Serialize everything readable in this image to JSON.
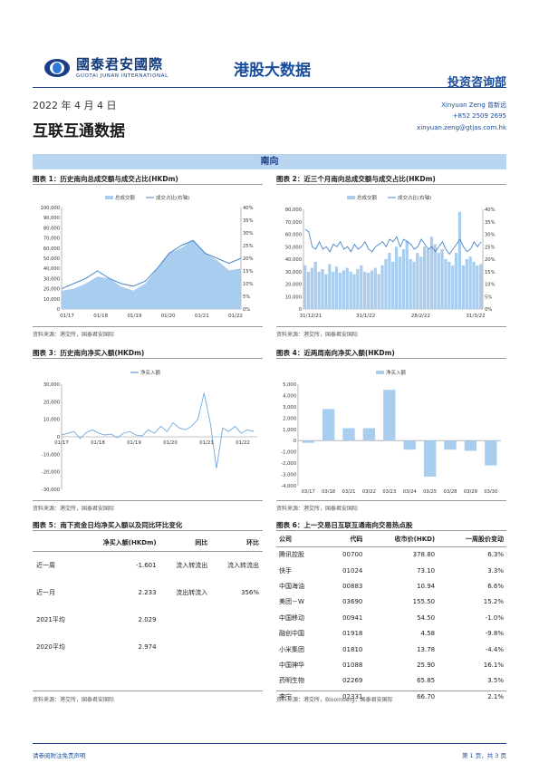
{
  "header": {
    "brand_cn": "國泰君安國際",
    "brand_en": "GUOTAI JUNAN INTERNATIONAL",
    "report_title": "港股大数据",
    "department": "投资咨询部"
  },
  "doc": {
    "date": "2022 年 4 月 4 日",
    "title": "互联互通数据"
  },
  "contact": {
    "name": "Xinyuan Zeng 曾新远",
    "phone": "+852 2509 2695",
    "email": "xinyuan.zeng@gtjas.com.hk"
  },
  "section": {
    "label": "南向"
  },
  "colors": {
    "bar": "#a9cdef",
    "line": "#4a86c8",
    "accent": "#1a3e86",
    "band": "#b8d4ee"
  },
  "fig1": {
    "title": "图表 1：历史南向总成交额与成交占比(HKDm)",
    "source": "资料来源：港交所，国泰君安国际",
    "chart_data": {
      "type": "area",
      "series": [
        {
          "name": "总成交额",
          "values": [
            18000,
            20000,
            25000,
            32000,
            30000,
            22000,
            18000,
            25000,
            40000,
            55000,
            60000,
            68000,
            55000,
            48000,
            38000,
            40000
          ]
        },
        {
          "name": "成交占比(右轴)",
          "values": [
            8,
            10,
            12,
            15,
            12,
            10,
            9,
            11,
            16,
            22,
            25,
            27,
            22,
            20,
            18,
            20
          ]
        }
      ],
      "x_ticks": [
        "01/17",
        "01/18",
        "01/19",
        "01/20",
        "01/21",
        "01/22"
      ],
      "y_ticks": [
        "100,000",
        "90,000",
        "80,000",
        "70,000",
        "60,000",
        "50,000",
        "40,000",
        "30,000",
        "20,000",
        "10,000",
        "0"
      ],
      "y2_ticks": [
        "40%",
        "35%",
        "30%",
        "25%",
        "20%",
        "15%",
        "10%",
        "5%",
        "0%"
      ],
      "ylim": [
        0,
        100000
      ],
      "y2lim": [
        0,
        40
      ]
    }
  },
  "fig2": {
    "title": "图表 2：近三个月南向总成交额与成交占比(HKDm)",
    "source": "资料来源：港交所，国泰君安国际",
    "chart_data": {
      "type": "bar",
      "series": [
        {
          "name": "总成交额",
          "values": [
            35000,
            30000,
            33000,
            38000,
            30000,
            32000,
            28000,
            36000,
            30000,
            34000,
            29000,
            31000,
            33000,
            30000,
            28000,
            32000,
            35000,
            30000,
            29000,
            31000,
            33000,
            28000,
            35000,
            40000,
            45000,
            38000,
            50000,
            42000,
            48000,
            55000,
            40000,
            38000,
            45000,
            42000,
            50000,
            48000,
            58000,
            52000,
            45000,
            48000,
            40000,
            38000,
            35000,
            45000,
            78000,
            35000,
            40000,
            42000,
            38000,
            35000,
            36000
          ]
        },
        {
          "name": "成交占比(右轴)",
          "values": [
            32,
            31,
            25,
            24,
            27,
            24,
            25,
            23,
            26,
            25,
            27,
            24,
            25,
            23,
            26,
            24,
            25,
            27,
            24,
            23,
            25,
            26,
            27,
            25,
            28,
            27,
            29,
            25,
            28,
            27,
            26,
            24,
            25,
            28,
            26,
            24,
            25,
            23,
            25,
            27,
            24,
            22,
            24,
            26,
            28,
            25,
            23,
            24,
            27,
            25,
            27
          ]
        }
      ],
      "x_ticks": [
        "31/12/21",
        "31/1/22",
        "28/2/22",
        "31/3/22"
      ],
      "y_ticks": [
        "80,000",
        "70,000",
        "60,000",
        "50,000",
        "40,000",
        "30,000",
        "20,000",
        "10,000",
        "0"
      ],
      "y2_ticks": [
        "40%",
        "35%",
        "30%",
        "25%",
        "20%",
        "15%",
        "10%",
        "5%",
        "0%"
      ],
      "ylim": [
        0,
        80000
      ],
      "y2lim": [
        0,
        40
      ]
    }
  },
  "fig3": {
    "title": "图表 3：历史南向净买入额(HKDm)",
    "source": "资料来源：港交所，国泰君安国际",
    "chart_data": {
      "type": "line",
      "series": [
        {
          "name": "净买入额",
          "values": [
            1000,
            2000,
            3000,
            -1000,
            2500,
            4000,
            2000,
            1000,
            1500,
            -500,
            2000,
            3000,
            1000,
            500,
            4000,
            2000,
            6000,
            3000,
            8000,
            5000,
            4000,
            6000,
            10000,
            25000,
            8000,
            -18000,
            5000,
            3000,
            6000,
            2000,
            4000,
            3000
          ]
        }
      ],
      "x_ticks": [
        "01/17",
        "01/18",
        "01/19",
        "01/20",
        "01/21",
        "01/22"
      ],
      "y_ticks": [
        "30,000",
        "20,000",
        "10,000",
        "0",
        "-10,000",
        "-20,000",
        "-30,000"
      ],
      "ylim": [
        -30000,
        30000
      ]
    }
  },
  "fig4": {
    "title": "图表 4：近两周南向净买入额(HKDm)",
    "source": "资料来源：港交所，国泰君安国际",
    "chart_data": {
      "type": "bar",
      "series": [
        {
          "name": "净买入额",
          "values": [
            -200,
            2800,
            1100,
            1100,
            4500,
            -800,
            -3200,
            -800,
            -900,
            -2200
          ]
        }
      ],
      "categories": [
        "03/17",
        "03/18",
        "03/21",
        "03/22",
        "03/23",
        "03/24",
        "03/25",
        "03/28",
        "03/29",
        "03/30"
      ],
      "y_ticks": [
        "5,000",
        "4,000",
        "3,000",
        "2,000",
        "1,000",
        "0",
        "-1,000",
        "-2,000",
        "-3,000",
        "-4,000"
      ],
      "ylim": [
        -4000,
        5000
      ]
    }
  },
  "fig5": {
    "title": "图表 5：南下资金日均净买入额以及同比环比变化",
    "source": "资料来源：港交所，国泰君安国际",
    "headers": [
      "",
      "净买入额(HKDm)",
      "同比",
      "环比"
    ],
    "rows": [
      [
        "近一周",
        "-1.601",
        "流入转流出",
        "流入转流出"
      ],
      [
        "近一月",
        "2.233",
        "流出转流入",
        "356%"
      ],
      [
        "2021平均",
        "2.029",
        "",
        ""
      ],
      [
        "2020平均",
        "2.974",
        "",
        ""
      ]
    ]
  },
  "fig6": {
    "title": "图表 6：上一交易日互联互通南向交易热点股",
    "source": "资料来源：港交所，Bloomberg，国泰君安国际",
    "headers": [
      "公司",
      "代码",
      "收市价(HKD)",
      "一周股价变动"
    ],
    "rows": [
      [
        "腾讯控股",
        "00700",
        "378.80",
        "6.3%"
      ],
      [
        "快手",
        "01024",
        "73.10",
        "3.3%"
      ],
      [
        "中国海油",
        "00883",
        "10.94",
        "6.6%"
      ],
      [
        "美团－W",
        "03690",
        "155.50",
        "15.2%"
      ],
      [
        "中国移动",
        "00941",
        "54.50",
        "-1.0%"
      ],
      [
        "融创中国",
        "01918",
        "4.58",
        "-9.8%"
      ],
      [
        "小米集团",
        "01810",
        "13.78",
        "-4.4%"
      ],
      [
        "中国神华",
        "01088",
        "25.90",
        "16.1%"
      ],
      [
        "药明生物",
        "02269",
        "65.85",
        "3.5%"
      ],
      [
        "李宁",
        "02331",
        "66.70",
        "2.1%"
      ]
    ]
  },
  "footer": {
    "disclaimer": "请参阅附注免责声明",
    "page": "第 1 页，共 3 页"
  }
}
